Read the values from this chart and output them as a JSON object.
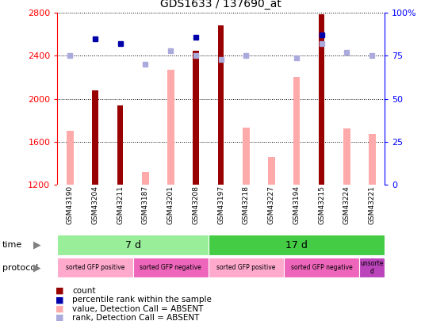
{
  "title": "GDS1633 / 137690_at",
  "samples": [
    "GSM43190",
    "GSM43204",
    "GSM43211",
    "GSM43187",
    "GSM43201",
    "GSM43208",
    "GSM43197",
    "GSM43218",
    "GSM43227",
    "GSM43194",
    "GSM43215",
    "GSM43224",
    "GSM43221"
  ],
  "count_values": [
    null,
    2080,
    1940,
    null,
    null,
    2450,
    2680,
    null,
    null,
    null,
    2790,
    null,
    null
  ],
  "count_absent_values": [
    1700,
    null,
    null,
    1320,
    2270,
    null,
    null,
    1730,
    1460,
    2200,
    null,
    1720,
    1670
  ],
  "rank_values": [
    null,
    85,
    82,
    null,
    null,
    86,
    null,
    null,
    null,
    null,
    87,
    null,
    null
  ],
  "rank_absent_values": [
    75,
    null,
    null,
    70,
    78,
    75,
    73,
    75,
    null,
    74,
    82,
    77,
    75
  ],
  "ylim_left": [
    1200,
    2800
  ],
  "ylim_right": [
    0,
    100
  ],
  "yticks_left": [
    1200,
    1600,
    2000,
    2400,
    2800
  ],
  "yticks_right": [
    0,
    25,
    50,
    75,
    100
  ],
  "time_groups": [
    {
      "label": "7 d",
      "start": 0,
      "end": 6,
      "color": "#99EE99"
    },
    {
      "label": "17 d",
      "start": 6,
      "end": 13,
      "color": "#44CC44"
    }
  ],
  "protocol_groups": [
    {
      "label": "sorted GFP positive",
      "start": 0,
      "end": 3,
      "color": "#FFAACC"
    },
    {
      "label": "sorted GFP negative",
      "start": 3,
      "end": 6,
      "color": "#EE66BB"
    },
    {
      "label": "sorted GFP positive",
      "start": 6,
      "end": 9,
      "color": "#FFAACC"
    },
    {
      "label": "sorted GFP negative",
      "start": 9,
      "end": 12,
      "color": "#EE66BB"
    },
    {
      "label": "unsorte\nd",
      "start": 12,
      "end": 13,
      "color": "#BB44BB"
    }
  ],
  "color_count": "#990000",
  "color_rank": "#0000AA",
  "color_count_absent": "#FFAAAA",
  "color_rank_absent": "#AAAADD",
  "bar_width": 0.5
}
